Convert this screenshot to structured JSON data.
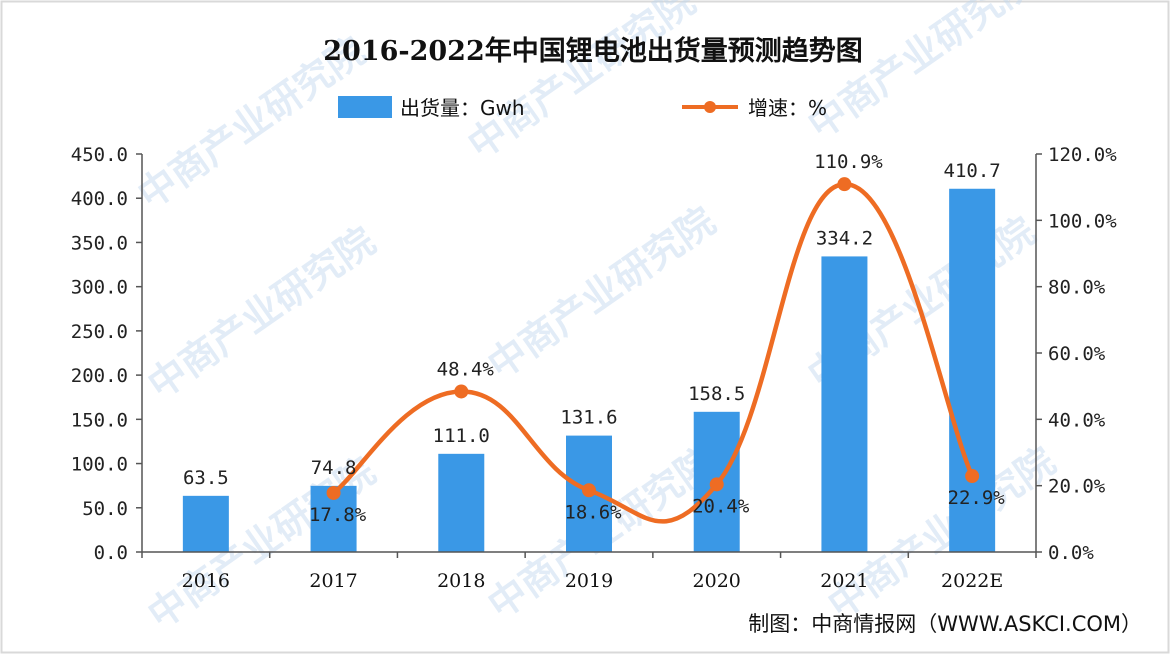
{
  "chart_data": {
    "type": "bar+line",
    "title": "2016-2022年中国锂电池出货量预测趋势图",
    "categories": [
      "2016",
      "2017",
      "2018",
      "2019",
      "2020",
      "2021",
      "2022E"
    ],
    "series": [
      {
        "name": "出货量：Gwh",
        "type": "bar",
        "axis": "left",
        "color": "#3a98e6",
        "values": [
          63.5,
          74.8,
          111.0,
          131.6,
          158.5,
          334.2,
          410.7
        ],
        "labels": [
          "63.5",
          "74.8",
          "111.0",
          "131.6",
          "158.5",
          "334.2",
          "410.7"
        ]
      },
      {
        "name": "增速：%",
        "type": "line",
        "axis": "right",
        "color": "#ee6c23",
        "points": [
          {
            "category": "2017",
            "value": 17.8,
            "label": "17.8%"
          },
          {
            "category": "2018",
            "value": 48.4,
            "label": "48.4%"
          },
          {
            "category": "2019",
            "value": 18.6,
            "label": "18.6%"
          },
          {
            "category": "2020",
            "value": 20.4,
            "label": "20.4%"
          },
          {
            "category": "2021",
            "value": 110.9,
            "label": "110.9%"
          },
          {
            "category": "2022E",
            "value": 22.9,
            "label": "22.9%"
          }
        ]
      }
    ],
    "y_left": {
      "min": 0,
      "max": 450,
      "step": 50,
      "tick_labels": [
        "0.0",
        "50.0",
        "100.0",
        "150.0",
        "200.0",
        "250.0",
        "300.0",
        "350.0",
        "400.0",
        "450.0"
      ]
    },
    "y_right": {
      "min": 0,
      "max": 120,
      "step": 20,
      "tick_labels": [
        "0.0%",
        "20.0%",
        "40.0%",
        "60.0%",
        "80.0%",
        "100.0%",
        "120.0%"
      ]
    },
    "legend": {
      "position": "top",
      "items": [
        {
          "label": "出货量：Gwh",
          "marker": "bar"
        },
        {
          "label": "增速：%",
          "marker": "line"
        }
      ]
    },
    "grid": false
  },
  "source": "制图：中商情报网（WWW.ASKCI.COM）",
  "watermark": "中商产业研究院",
  "colors": {
    "bar": "#3a98e6",
    "line": "#ee6c23",
    "axis": "#555555",
    "border": "#d9d9d9"
  }
}
